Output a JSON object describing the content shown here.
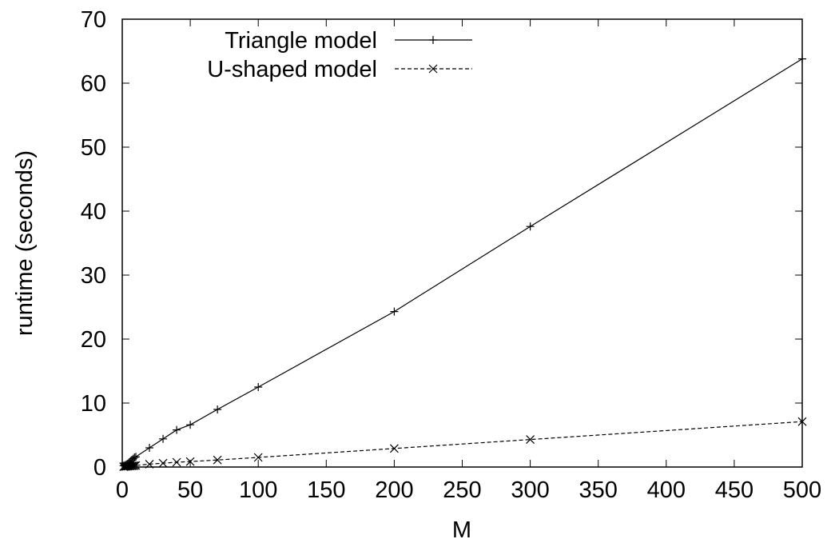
{
  "chart_data": {
    "type": "line",
    "xlabel": "M",
    "ylabel": "runtime (seconds)",
    "xlim": [
      0,
      500
    ],
    "ylim": [
      0,
      70
    ],
    "xticks": [
      0,
      50,
      100,
      150,
      200,
      250,
      300,
      350,
      400,
      450,
      500
    ],
    "yticks": [
      0,
      10,
      20,
      30,
      40,
      50,
      60,
      70
    ],
    "grid": false,
    "legend_position": "top-left",
    "series": [
      {
        "name": "Triangle model",
        "line_style": "solid",
        "marker": "plus",
        "color": "#000000",
        "x": [
          1,
          2,
          3,
          4,
          5,
          6,
          7,
          8,
          9,
          10,
          20,
          30,
          40,
          50,
          70,
          100,
          200,
          300,
          500
        ],
        "y": [
          0.2,
          0.3,
          0.4,
          0.5,
          0.7,
          0.9,
          1.1,
          1.3,
          1.5,
          1.6,
          3.0,
          4.4,
          5.8,
          6.6,
          9.0,
          12.5,
          24.3,
          37.6,
          63.8
        ]
      },
      {
        "name": "U-shaped model",
        "line_style": "dashed",
        "marker": "cross",
        "color": "#000000",
        "x": [
          1,
          2,
          3,
          4,
          5,
          6,
          7,
          8,
          9,
          10,
          20,
          30,
          40,
          50,
          70,
          100,
          200,
          300,
          500
        ],
        "y": [
          0.05,
          0.07,
          0.1,
          0.12,
          0.14,
          0.16,
          0.18,
          0.2,
          0.22,
          0.25,
          0.45,
          0.6,
          0.75,
          0.85,
          1.1,
          1.5,
          2.9,
          4.3,
          7.1
        ]
      }
    ]
  }
}
